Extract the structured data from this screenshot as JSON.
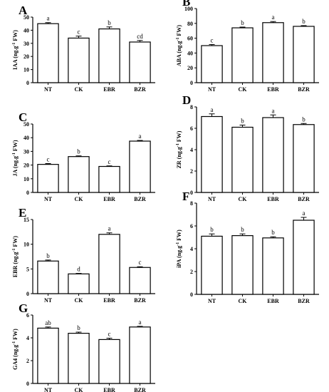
{
  "chart_data": [
    {
      "type": "bar",
      "panel": "A",
      "ylabel_main": "IAA",
      "ylabel_unit": "(ng.g",
      "ylabel_exp": "-1",
      "ylabel_tail": " FW)",
      "categories": [
        "NT",
        "CK",
        "EBR",
        "BZR"
      ],
      "values": [
        45,
        34,
        41,
        31
      ],
      "errors": [
        0.8,
        1.5,
        1.5,
        1.2
      ],
      "labels": [
        "a",
        "c",
        "b",
        "cd"
      ],
      "ylim": [
        0,
        50
      ],
      "yticks": [
        "0",
        "10",
        "20",
        "30",
        "40",
        "50"
      ]
    },
    {
      "type": "bar",
      "panel": "B",
      "ylabel_main": "ABA",
      "ylabel_unit": "(ng.g",
      "ylabel_exp": "-1",
      "ylabel_tail": " FW)",
      "categories": [
        "NT",
        "CK",
        "EBR",
        "BZR"
      ],
      "values": [
        50,
        74,
        81,
        76
      ],
      "errors": [
        1.5,
        1.0,
        1.5,
        1.0
      ],
      "labels": [
        "c",
        "b",
        "a",
        "b"
      ],
      "ylim": [
        0,
        100
      ],
      "yticks": [
        "0",
        "20",
        "40",
        "60",
        "80",
        "100"
      ]
    },
    {
      "type": "bar",
      "panel": "C",
      "ylabel_main": "JA",
      "ylabel_unit": "(ng.g",
      "ylabel_exp": "-1",
      "ylabel_tail": " FW)",
      "categories": [
        "NT",
        "CK",
        "EBR",
        "BZR"
      ],
      "values": [
        20.5,
        26.2,
        19,
        37.5
      ],
      "errors": [
        0.6,
        0.5,
        0.4,
        0.5
      ],
      "labels": [
        "c",
        "b",
        "c",
        "a"
      ],
      "ylim": [
        0,
        50
      ],
      "yticks": [
        "0",
        "10",
        "20",
        "30",
        "40",
        "50"
      ]
    },
    {
      "type": "bar",
      "panel": "D",
      "ylabel_main": "ZR",
      "ylabel_unit": "(ng.g",
      "ylabel_exp": "-1",
      "ylabel_tail": " FW)",
      "categories": [
        "NT",
        "CK",
        "EBR",
        "BZR"
      ],
      "values": [
        7.1,
        6.1,
        7.0,
        6.35
      ],
      "errors": [
        0.25,
        0.2,
        0.25,
        0.1
      ],
      "labels": [
        "a",
        "b",
        "a",
        "b"
      ],
      "ylim": [
        0,
        8
      ],
      "yticks": [
        "0",
        "2",
        "4",
        "6",
        "8"
      ]
    },
    {
      "type": "bar",
      "panel": "E",
      "ylabel_main": "EBR",
      "ylabel_unit": "(ng.g",
      "ylabel_exp": "-1",
      "ylabel_tail": " FW)",
      "categories": [
        "NT",
        "CK",
        "EBR",
        "BZR"
      ],
      "values": [
        6.6,
        4.0,
        12.0,
        5.3
      ],
      "errors": [
        0.2,
        0.1,
        0.3,
        0.15
      ],
      "labels": [
        "b",
        "d",
        "a",
        "c"
      ],
      "ylim": [
        0,
        15
      ],
      "yticks": [
        "0",
        "5",
        "10",
        "15"
      ]
    },
    {
      "type": "bar",
      "panel": "F",
      "ylabel_main": "iPA",
      "ylabel_unit": "(ng.g",
      "ylabel_exp": "-1",
      "ylabel_tail": " FW)",
      "categories": [
        "NT",
        "CK",
        "EBR",
        "BZR"
      ],
      "values": [
        5.1,
        5.15,
        4.95,
        6.5
      ],
      "errors": [
        0.2,
        0.15,
        0.1,
        0.25
      ],
      "labels": [
        "b",
        "b",
        "b",
        "a"
      ],
      "ylim": [
        0,
        8
      ],
      "yticks": [
        "0",
        "2",
        "4",
        "6",
        "8"
      ]
    },
    {
      "type": "bar",
      "panel": "G",
      "ylabel_main": "GA4",
      "ylabel_unit": "(ng.g",
      "ylabel_exp": "-1",
      "ylabel_tail": " FW)",
      "categories": [
        "NT",
        "CK",
        "EBR",
        "BZR"
      ],
      "values": [
        4.85,
        4.4,
        3.85,
        4.95
      ],
      "errors": [
        0.1,
        0.1,
        0.12,
        0.06
      ],
      "labels": [
        "ab",
        "b",
        "c",
        "a"
      ],
      "ylim": [
        0,
        6
      ],
      "yticks": [
        "0",
        "2",
        "4",
        "6"
      ]
    }
  ]
}
